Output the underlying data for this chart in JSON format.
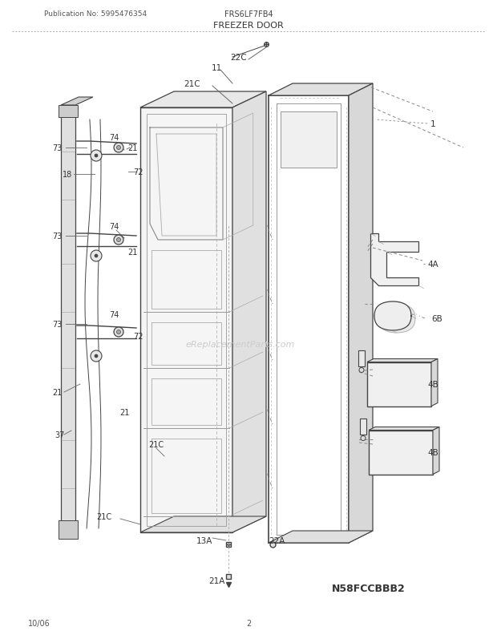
{
  "title": "FREEZER DOOR",
  "pub_no": "Publication No: 5995476354",
  "model": "FRS6LF7FB4",
  "diagram_id": "N58FCCBBB2",
  "date": "10/06",
  "page": "2",
  "watermark": "eReplacementParts.com",
  "bg_color": "#ffffff",
  "line_color": "#444444",
  "text_color": "#333333",
  "fig_width": 6.2,
  "fig_height": 8.03,
  "dpi": 100
}
